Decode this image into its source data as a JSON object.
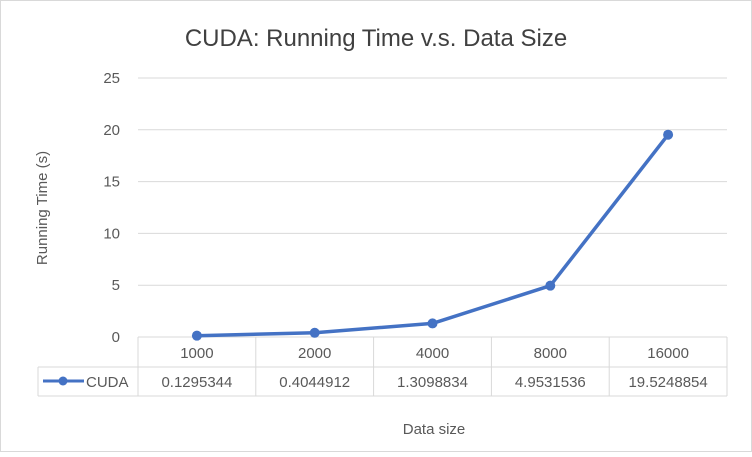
{
  "chart_data": {
    "type": "line",
    "title": "CUDA: Running Time v.s. Data Size",
    "xlabel": "Data size",
    "ylabel": "Running Time (s)",
    "categories": [
      "1000",
      "2000",
      "4000",
      "8000",
      "16000"
    ],
    "series": [
      {
        "name": "CUDA",
        "values": [
          0.1295344,
          0.4044912,
          1.3098834,
          4.9531536,
          19.5248854
        ],
        "value_labels": [
          "0.1295344",
          "0.4044912",
          "1.3098834",
          "4.9531536",
          "19.5248854"
        ],
        "color": "#4472C4"
      }
    ],
    "ylim": [
      0,
      25
    ],
    "yticks": [
      0,
      5,
      10,
      15,
      20,
      25
    ],
    "ytick_labels": [
      "0",
      "5",
      "10",
      "15",
      "20",
      "25"
    ],
    "grid": true,
    "legend": "data-table",
    "colors": {
      "gridline": "#d9d9d9",
      "text": "#595959",
      "title": "#404040"
    }
  }
}
